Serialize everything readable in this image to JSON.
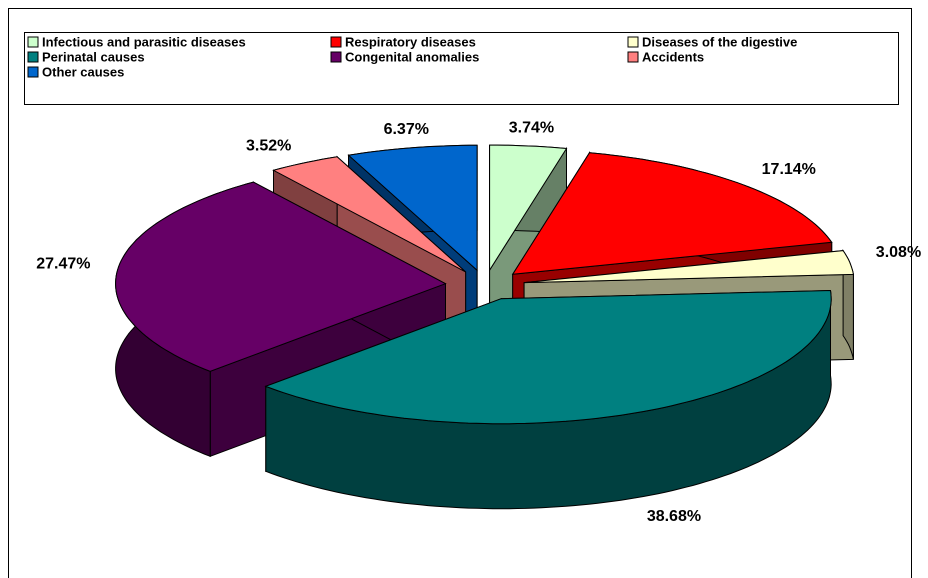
{
  "chart_data": {
    "type": "pie",
    "categories": [
      "Infectious and parasitic diseases",
      "Respiratory diseases",
      "Diseases of the digestive",
      "Perinatal causes",
      "Congenital anomalies",
      "Accidents",
      "Other causes"
    ],
    "values": [
      3.74,
      17.14,
      3.08,
      38.68,
      27.47,
      3.52,
      6.37
    ],
    "value_labels": [
      "3.74%",
      "17.14%",
      "3.08%",
      "38.68%",
      "27.47%",
      "3.52%",
      "6.37%"
    ],
    "colors": [
      "#ccffcc",
      "#ff0000",
      "#ffffcc",
      "#008080",
      "#660066",
      "#ff8080",
      "#0066cc"
    ],
    "legend": "top"
  }
}
